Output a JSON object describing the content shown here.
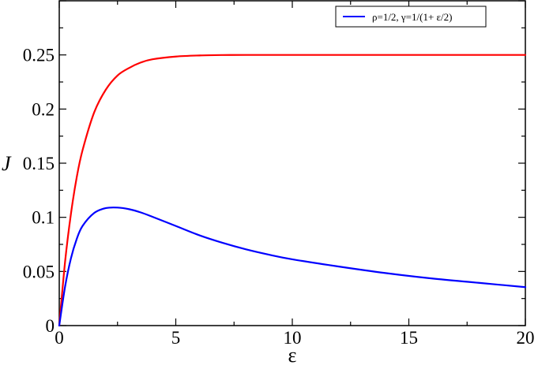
{
  "chart_data": {
    "type": "line",
    "title": "",
    "xlabel": "ε",
    "ylabel": "J",
    "xlim": [
      0,
      20
    ],
    "ylim": [
      0,
      0.3
    ],
    "grid": false,
    "legend_position": "top-right",
    "x_ticks": [
      0,
      5,
      10,
      15,
      20
    ],
    "x_tick_labels": [
      "0",
      "5",
      "10",
      "15",
      "20"
    ],
    "y_ticks": [
      0,
      0.05,
      0.1,
      0.15,
      0.2,
      0.25
    ],
    "y_tick_labels": [
      "0",
      "0.05",
      "0.1",
      "0.15",
      "0.2",
      "0.25"
    ],
    "series": [
      {
        "name": "",
        "color": "#ff0000",
        "x": [
          0,
          0.25,
          0.5,
          0.75,
          1,
          1.5,
          2,
          2.5,
          3,
          3.5,
          4,
          5,
          6,
          7,
          8,
          10,
          12,
          15,
          20
        ],
        "y": [
          0,
          0.059,
          0.103,
          0.137,
          0.162,
          0.197,
          0.218,
          0.231,
          0.238,
          0.243,
          0.246,
          0.2485,
          0.2495,
          0.2499,
          0.25,
          0.25,
          0.25,
          0.25,
          0.25
        ]
      },
      {
        "name": "ρ=1/2,  γ=1/(1+ ε/2)",
        "color": "#0000ff",
        "x": [
          0,
          0.25,
          0.5,
          0.75,
          1,
          1.5,
          2,
          2.5,
          3,
          3.5,
          4,
          5,
          6,
          7,
          8,
          9,
          10,
          12,
          14,
          16,
          18,
          20
        ],
        "y": [
          0,
          0.036,
          0.062,
          0.08,
          0.092,
          0.104,
          0.1085,
          0.109,
          0.1075,
          0.1045,
          0.1005,
          0.092,
          0.0835,
          0.0765,
          0.0705,
          0.0655,
          0.0612,
          0.0545,
          0.0485,
          0.0435,
          0.0395,
          0.0355
        ]
      }
    ]
  }
}
